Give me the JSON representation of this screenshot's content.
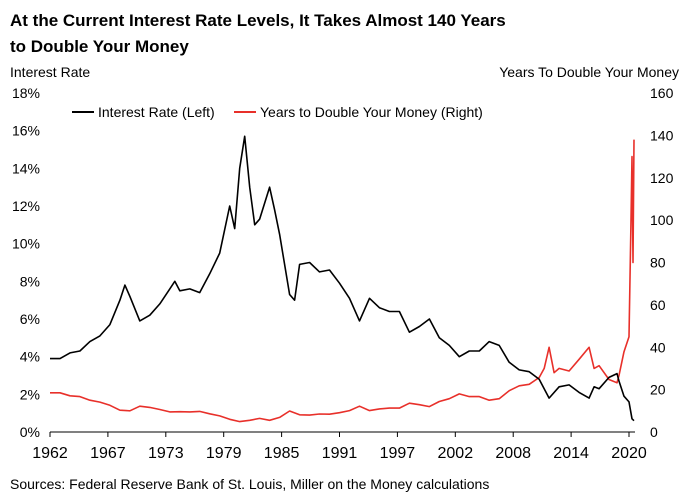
{
  "chart_data": {
    "type": "line",
    "title": "At the Current Interest Rate Levels, It Takes Almost 140 Years to Double Your Money",
    "title_lines": [
      "At the Current Interest Rate Levels, It Takes Almost 140 Years",
      "to Double Your Money"
    ],
    "ylabel_left": "Interest Rate",
    "ylabel_right": "Years To Double Your Money",
    "source": "Sources: Federal Reserve Bank of St. Louis, Miller on the Money calculations",
    "x_ticks": [
      "1962",
      "1967",
      "1973",
      "1979",
      "1985",
      "1991",
      "1997",
      "2002",
      "2008",
      "2014",
      "2020"
    ],
    "xlim": [
      1962,
      2020.6
    ],
    "ylim_left": [
      0,
      18
    ],
    "ylim_right": [
      0,
      160
    ],
    "y_ticks_left": [
      "0%",
      "2%",
      "4%",
      "6%",
      "8%",
      "10%",
      "12%",
      "14%",
      "16%",
      "18%"
    ],
    "y_ticks_right": [
      "0",
      "20",
      "40",
      "60",
      "80",
      "100",
      "120",
      "140",
      "160"
    ],
    "grid": false,
    "legend_position": "top-left",
    "colors": {
      "interest_rate": "#000000",
      "years_to_double": "#e8302a"
    },
    "series": [
      {
        "name": "Interest Rate (Left)",
        "axis": "left",
        "unit": "%",
        "x": [
          1962.0,
          1963.0,
          1964.0,
          1965.0,
          1966.0,
          1967.0,
          1968.0,
          1969.0,
          1969.5,
          1970.0,
          1971.0,
          1972.0,
          1973.0,
          1974.0,
          1974.5,
          1975.0,
          1976.0,
          1977.0,
          1978.0,
          1979.0,
          1980.0,
          1980.5,
          1981.0,
          1981.5,
          1982.0,
          1982.5,
          1983.0,
          1984.0,
          1984.5,
          1985.0,
          1986.0,
          1986.5,
          1987.0,
          1988.0,
          1989.0,
          1990.0,
          1991.0,
          1992.0,
          1993.0,
          1994.0,
          1995.0,
          1996.0,
          1997.0,
          1998.0,
          1999.0,
          2000.0,
          2001.0,
          2002.0,
          2003.0,
          2004.0,
          2005.0,
          2006.0,
          2007.0,
          2008.0,
          2009.0,
          2010.0,
          2011.0,
          2012.0,
          2013.0,
          2014.0,
          2015.0,
          2016.0,
          2016.5,
          2017.0,
          2018.0,
          2018.8,
          2019.0,
          2019.5,
          2020.0,
          2020.3,
          2020.5
        ],
        "values": [
          3.9,
          3.9,
          4.2,
          4.3,
          4.8,
          5.1,
          5.7,
          7.0,
          7.8,
          7.2,
          5.9,
          6.2,
          6.8,
          7.6,
          8.0,
          7.5,
          7.6,
          7.4,
          8.4,
          9.5,
          12.0,
          10.8,
          14.0,
          15.7,
          13.0,
          11.0,
          11.3,
          13.0,
          11.8,
          10.5,
          7.3,
          7.0,
          8.9,
          9.0,
          8.5,
          8.6,
          7.9,
          7.1,
          5.9,
          7.1,
          6.6,
          6.4,
          6.4,
          5.3,
          5.6,
          6.0,
          5.0,
          4.6,
          4.0,
          4.3,
          4.3,
          4.8,
          4.6,
          3.7,
          3.3,
          3.2,
          2.8,
          1.8,
          2.4,
          2.5,
          2.1,
          1.8,
          2.4,
          2.3,
          2.9,
          3.1,
          2.7,
          1.9,
          1.6,
          0.7,
          0.6
        ]
      },
      {
        "name": "Years to Double Your Money (Right)",
        "axis": "right",
        "unit": "years",
        "x": [
          1962.0,
          1963.0,
          1964.0,
          1965.0,
          1966.0,
          1967.0,
          1968.0,
          1969.0,
          1970.0,
          1971.0,
          1972.0,
          1973.0,
          1974.0,
          1975.0,
          1976.0,
          1977.0,
          1978.0,
          1979.0,
          1980.0,
          1981.0,
          1982.0,
          1983.0,
          1984.0,
          1985.0,
          1986.0,
          1987.0,
          1988.0,
          1989.0,
          1990.0,
          1991.0,
          1992.0,
          1993.0,
          1994.0,
          1995.0,
          1996.0,
          1997.0,
          1998.0,
          1999.0,
          2000.0,
          2001.0,
          2002.0,
          2003.0,
          2004.0,
          2005.0,
          2006.0,
          2007.0,
          2008.0,
          2009.0,
          2010.0,
          2011.0,
          2011.5,
          2012.0,
          2012.5,
          2013.0,
          2014.0,
          2015.0,
          2016.0,
          2016.5,
          2017.0,
          2018.0,
          2018.8,
          2019.0,
          2019.5,
          2020.0,
          2020.2,
          2020.3,
          2020.4,
          2020.5
        ],
        "values": [
          18.5,
          18.5,
          17.1,
          16.7,
          15.0,
          14.1,
          12.6,
          10.3,
          10.0,
          12.2,
          11.6,
          10.6,
          9.5,
          9.6,
          9.5,
          9.7,
          8.6,
          7.6,
          6.0,
          4.9,
          5.5,
          6.4,
          5.5,
          6.9,
          9.9,
          8.1,
          8.0,
          8.5,
          8.4,
          9.1,
          10.1,
          12.2,
          10.1,
          10.9,
          11.3,
          11.3,
          13.6,
          12.9,
          12.0,
          14.4,
          15.7,
          18.0,
          16.7,
          16.7,
          15.0,
          15.7,
          19.5,
          21.8,
          22.5,
          25.7,
          30.0,
          40.0,
          28.0,
          30.0,
          28.8,
          34.3,
          40.0,
          30.0,
          31.3,
          24.8,
          23.2,
          26.7,
          37.9,
          45.0,
          100.0,
          130.0,
          80.0,
          138.0
        ]
      }
    ]
  }
}
